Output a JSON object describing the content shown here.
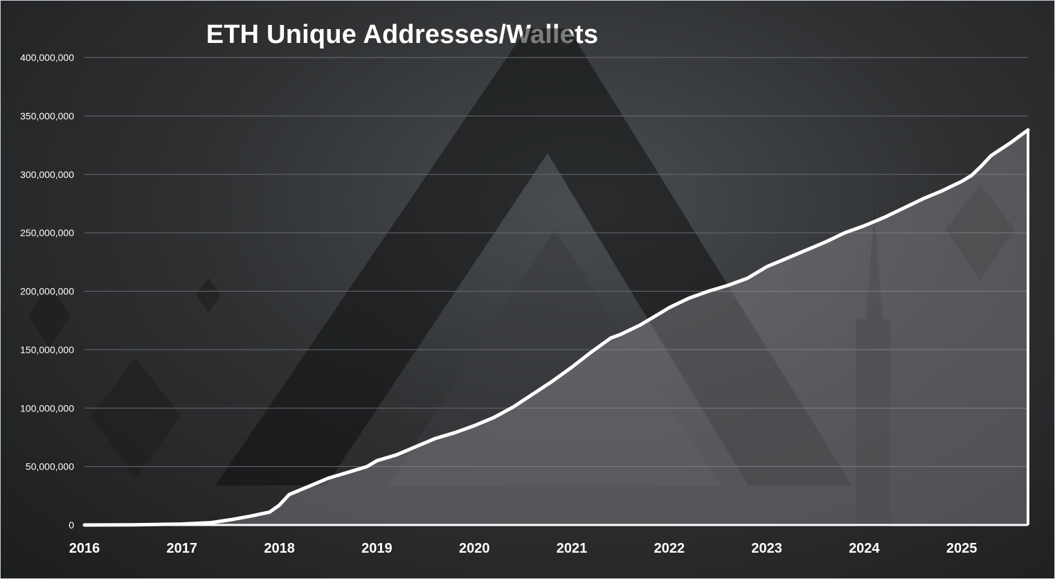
{
  "chart_data": {
    "type": "area",
    "title": "ETH Unique Addresses/Wallets",
    "xlabel": "",
    "ylabel": "",
    "ylim": [
      0,
      400000000
    ],
    "xlim": [
      2016,
      2025.68
    ],
    "grid": true,
    "legend": "none",
    "y_ticks": [
      "400,000,000",
      "350,000,000",
      "300,000,000",
      "250,000,000",
      "200,000,000",
      "150,000,000",
      "100,000,000",
      "50,000,000",
      "0"
    ],
    "x_ticks": [
      "2016",
      "2017",
      "2018",
      "2019",
      "2020",
      "2021",
      "2022",
      "2023",
      "2024",
      "2025"
    ],
    "line_color": "#ffffff",
    "area_color": "#9a9ba0",
    "series": [
      {
        "x": [
          2016.0,
          2016.5,
          2017.0,
          2017.3,
          2017.5,
          2017.7,
          2017.9,
          2018.0,
          2018.1,
          2018.3,
          2018.5,
          2018.7,
          2018.9,
          2019.0,
          2019.2,
          2019.4,
          2019.6,
          2019.8,
          2020.0,
          2020.2,
          2020.4,
          2020.6,
          2020.8,
          2021.0,
          2021.2,
          2021.4,
          2021.5,
          2021.7,
          2021.9,
          2022.0,
          2022.2,
          2022.4,
          2022.6,
          2022.8,
          2023.0,
          2023.2,
          2023.4,
          2023.6,
          2023.8,
          2024.0,
          2024.2,
          2024.4,
          2024.6,
          2024.8,
          2025.0,
          2025.1,
          2025.2,
          2025.3,
          2025.5,
          2025.68
        ],
        "values": [
          0,
          200000,
          800000,
          2000000,
          4500000,
          7500000,
          11000000,
          17000000,
          26000000,
          33000000,
          40000000,
          45000000,
          50000000,
          55000000,
          60000000,
          67000000,
          74000000,
          79000000,
          85000000,
          92000000,
          101000000,
          112000000,
          123000000,
          135000000,
          148000000,
          160000000,
          163000000,
          171000000,
          181000000,
          186000000,
          194000000,
          200000000,
          205000000,
          211000000,
          221000000,
          228000000,
          235000000,
          242000000,
          250000000,
          256000000,
          263000000,
          271000000,
          279000000,
          286000000,
          294000000,
          299000000,
          307000000,
          316000000,
          327000000,
          338000000
        ]
      }
    ]
  }
}
